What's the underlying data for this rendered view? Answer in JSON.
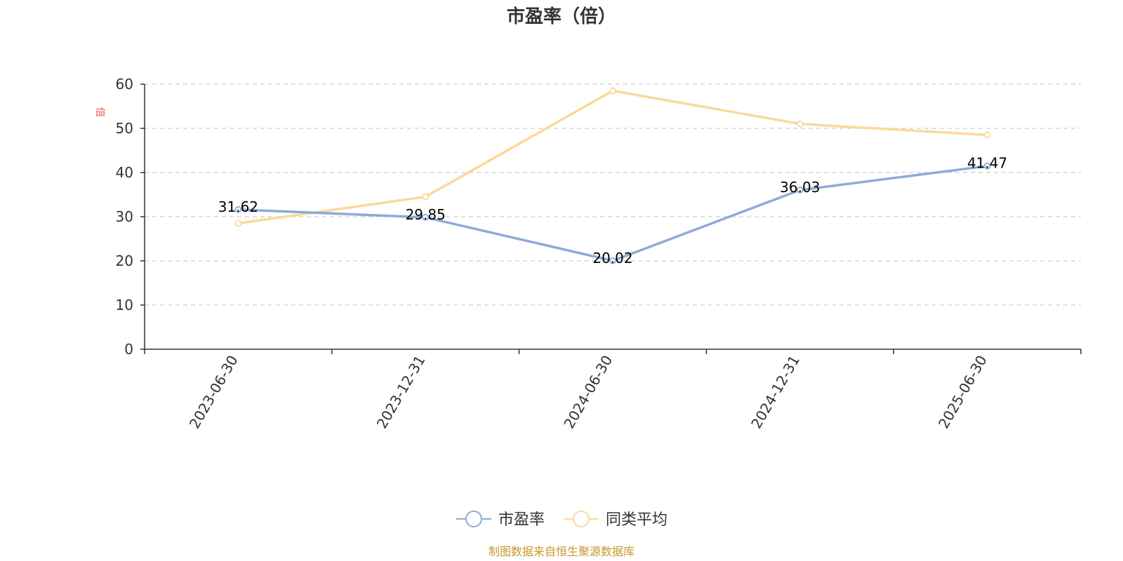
{
  "chart_data": {
    "type": "line",
    "title": "市盈率（倍）",
    "ylabel": "倍",
    "ylim": [
      0,
      60
    ],
    "yticks": [
      0,
      10,
      20,
      30,
      40,
      50,
      60
    ],
    "grid": true,
    "legend_position": "bottom-center",
    "categories": [
      "2023-06-30",
      "2023-12-31",
      "2024-06-30",
      "2024-12-31",
      "2025-06-30"
    ],
    "series": [
      {
        "name": "市盈率",
        "color": "#8eaad8",
        "values": [
          31.62,
          29.85,
          20.02,
          36.03,
          41.47
        ],
        "labels": [
          "31.62",
          "29.85",
          "20.02",
          "36.03",
          "41.47"
        ]
      },
      {
        "name": "同类平均",
        "color": "#fbd99a",
        "values": [
          28.5,
          34.5,
          58.5,
          51.0,
          48.5
        ]
      }
    ]
  },
  "source": "制图数据来自恒生聚源数据库",
  "colors": {
    "source": "#c8962a",
    "unit": "#e8484a",
    "axis": "#333333",
    "grid": "#cccccc"
  }
}
